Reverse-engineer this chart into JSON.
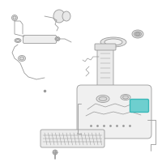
{
  "bg_color": "#ffffff",
  "highlight_color": "#6ecfcf",
  "line_color": "#999999",
  "dark_line": "#666666",
  "fig_width": 2.0,
  "fig_height": 2.0,
  "dpi": 100
}
